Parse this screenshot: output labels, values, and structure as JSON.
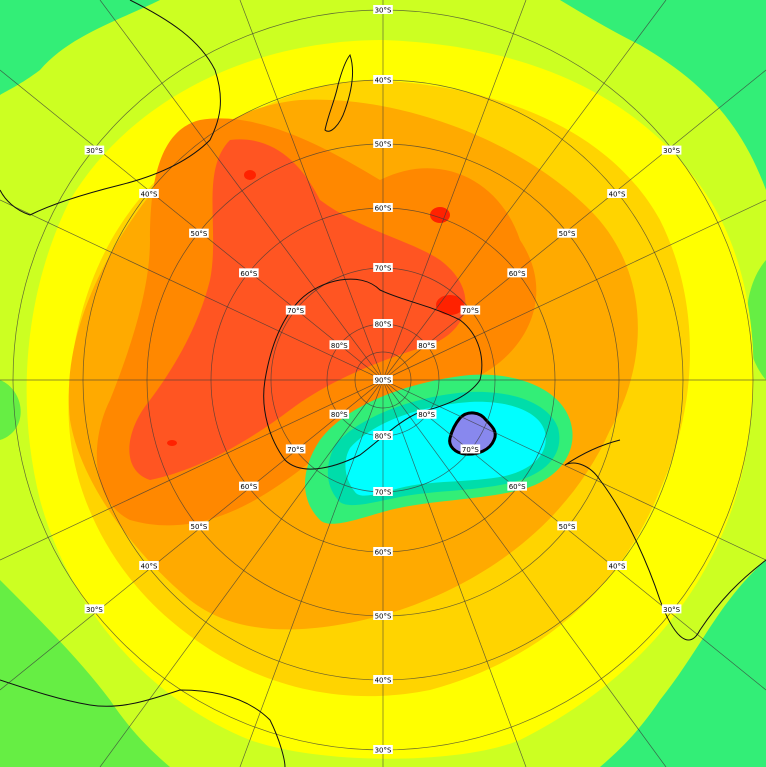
{
  "map": {
    "projection": "south-polar-stereographic",
    "colors": {
      "green_bright": "#33ee77",
      "green": "#66ee44",
      "yellow_green": "#ccff22",
      "yellow": "#ffff00",
      "yellow_orange": "#ffd400",
      "orange_light": "#ffaa00",
      "orange": "#ff8800",
      "red_orange": "#ff5522",
      "red": "#ff2200",
      "cyan": "#00ffff",
      "teal": "#00ddaa",
      "lavender": "#8888ee"
    },
    "pole_label": "90°S",
    "latitude_labels": [
      "30°S",
      "40°S",
      "50°S",
      "60°S",
      "70°S",
      "80°S"
    ],
    "highlighted_region": {
      "name": "ozone-hole-core",
      "color": "#8888ee"
    }
  }
}
